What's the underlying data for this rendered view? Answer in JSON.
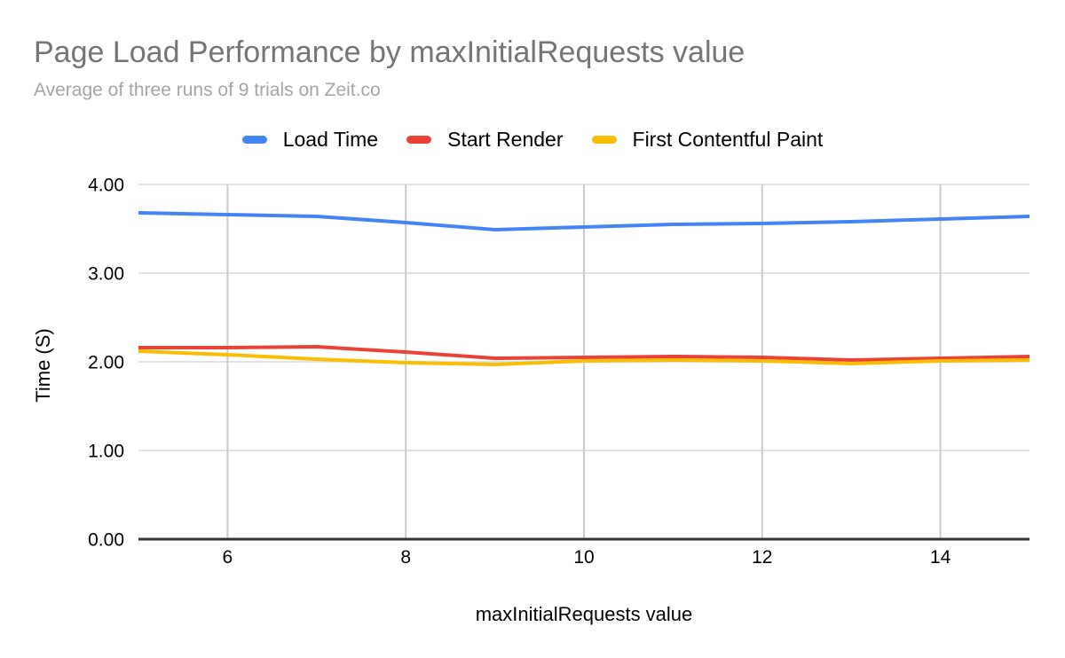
{
  "chart_data": {
    "type": "line",
    "title": "Page Load Performance by maxInitialRequests value",
    "subtitle": "Average of three runs of 9 trials on Zeit.co",
    "xlabel": "maxInitialRequests value",
    "ylabel": "Time (S)",
    "x": [
      5,
      6,
      7,
      8,
      9,
      10,
      11,
      12,
      13,
      14,
      15
    ],
    "series": [
      {
        "name": "Load Time",
        "color": "#4285F4",
        "values": [
          3.68,
          3.66,
          3.64,
          3.57,
          3.49,
          3.52,
          3.55,
          3.56,
          3.58,
          3.61,
          3.64
        ]
      },
      {
        "name": "Start Render",
        "color": "#EA4335",
        "values": [
          2.16,
          2.16,
          2.17,
          2.11,
          2.04,
          2.05,
          2.06,
          2.05,
          2.02,
          2.04,
          2.06
        ]
      },
      {
        "name": "First Contentful Paint",
        "color": "#FBBC04",
        "values": [
          2.12,
          2.08,
          2.03,
          1.99,
          1.97,
          2.01,
          2.02,
          2.01,
          1.98,
          2.01,
          2.02
        ]
      }
    ],
    "xlim": [
      5,
      15
    ],
    "ylim": [
      0,
      4
    ],
    "xticks": [
      {
        "value": 6,
        "label": "6"
      },
      {
        "value": 8,
        "label": "8"
      },
      {
        "value": 10,
        "label": "10"
      },
      {
        "value": 12,
        "label": "12"
      },
      {
        "value": 14,
        "label": "14"
      }
    ],
    "yticks": [
      {
        "value": 0,
        "label": "0.00"
      },
      {
        "value": 1,
        "label": "1.00"
      },
      {
        "value": 2,
        "label": "2.00"
      },
      {
        "value": 3,
        "label": "3.00"
      },
      {
        "value": 4,
        "label": "4.00"
      }
    ],
    "grid": true,
    "legend_position": "top",
    "colors": {
      "title_text": "#757575",
      "subtitle_text": "#a5a5a5",
      "axis_line": "#333333",
      "h_gridline": "#e2e2e2",
      "v_gridline": "#cccccc",
      "tick_label": "#000000"
    }
  }
}
